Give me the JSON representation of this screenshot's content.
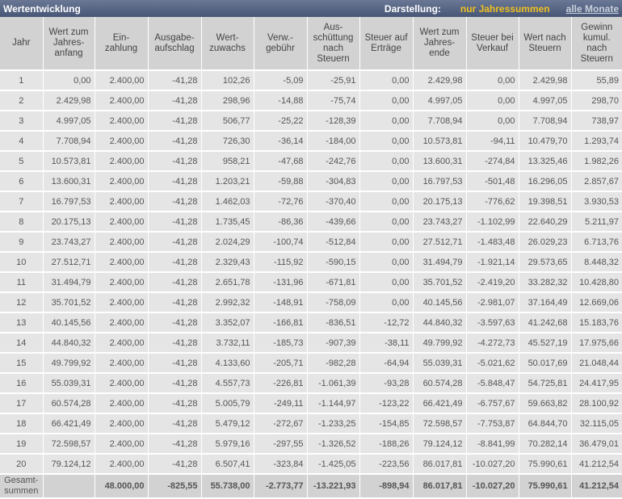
{
  "header": {
    "title": "Wertentwicklung",
    "display_label": "Darstellung:",
    "option_active": "nur Jahressummen",
    "option_link": "alle Monate"
  },
  "colors": {
    "titlebar": "#475676",
    "active_option": "#f0c020",
    "row_bg": "#e5e5e5",
    "header_bg": "#d2d2d2"
  },
  "columns": [
    "Jahr",
    "Wert zum Jahres-anfang",
    "Ein-zahlung",
    "Ausgabe-aufschlag",
    "Wert-zuwachs",
    "Verw.-gebühr",
    "Aus-schüttung nach Steuern",
    "Steuer auf Erträge",
    "Wert zum Jahres-ende",
    "Steuer bei Verkauf",
    "Wert nach Steuern",
    "Gewinn kumul. nach Steuern"
  ],
  "rows": [
    [
      "1",
      "0,00",
      "2.400,00",
      "-41,28",
      "102,26",
      "-5,09",
      "-25,91",
      "0,00",
      "2.429,98",
      "0,00",
      "2.429,98",
      "55,89"
    ],
    [
      "2",
      "2.429,98",
      "2.400,00",
      "-41,28",
      "298,96",
      "-14,88",
      "-75,74",
      "0,00",
      "4.997,05",
      "0,00",
      "4.997,05",
      "298,70"
    ],
    [
      "3",
      "4.997,05",
      "2.400,00",
      "-41,28",
      "506,77",
      "-25,22",
      "-128,39",
      "0,00",
      "7.708,94",
      "0,00",
      "7.708,94",
      "738,97"
    ],
    [
      "4",
      "7.708,94",
      "2.400,00",
      "-41,28",
      "726,30",
      "-36,14",
      "-184,00",
      "0,00",
      "10.573,81",
      "-94,11",
      "10.479,70",
      "1.293,74"
    ],
    [
      "5",
      "10.573,81",
      "2.400,00",
      "-41,28",
      "958,21",
      "-47,68",
      "-242,76",
      "0,00",
      "13.600,31",
      "-274,84",
      "13.325,46",
      "1.982,26"
    ],
    [
      "6",
      "13.600,31",
      "2.400,00",
      "-41,28",
      "1.203,21",
      "-59,88",
      "-304,83",
      "0,00",
      "16.797,53",
      "-501,48",
      "16.296,05",
      "2.857,67"
    ],
    [
      "7",
      "16.797,53",
      "2.400,00",
      "-41,28",
      "1.462,03",
      "-72,76",
      "-370,40",
      "0,00",
      "20.175,13",
      "-776,62",
      "19.398,51",
      "3.930,53"
    ],
    [
      "8",
      "20.175,13",
      "2.400,00",
      "-41,28",
      "1.735,45",
      "-86,36",
      "-439,66",
      "0,00",
      "23.743,27",
      "-1.102,99",
      "22.640,29",
      "5.211,97"
    ],
    [
      "9",
      "23.743,27",
      "2.400,00",
      "-41,28",
      "2.024,29",
      "-100,74",
      "-512,84",
      "0,00",
      "27.512,71",
      "-1.483,48",
      "26.029,23",
      "6.713,76"
    ],
    [
      "10",
      "27.512,71",
      "2.400,00",
      "-41,28",
      "2.329,43",
      "-115,92",
      "-590,15",
      "0,00",
      "31.494,79",
      "-1.921,14",
      "29.573,65",
      "8.448,32"
    ],
    [
      "11",
      "31.494,79",
      "2.400,00",
      "-41,28",
      "2.651,78",
      "-131,96",
      "-671,81",
      "0,00",
      "35.701,52",
      "-2.419,20",
      "33.282,32",
      "10.428,80"
    ],
    [
      "12",
      "35.701,52",
      "2.400,00",
      "-41,28",
      "2.992,32",
      "-148,91",
      "-758,09",
      "0,00",
      "40.145,56",
      "-2.981,07",
      "37.164,49",
      "12.669,06"
    ],
    [
      "13",
      "40.145,56",
      "2.400,00",
      "-41,28",
      "3.352,07",
      "-166,81",
      "-836,51",
      "-12,72",
      "44.840,32",
      "-3.597,63",
      "41.242,68",
      "15.183,76"
    ],
    [
      "14",
      "44.840,32",
      "2.400,00",
      "-41,28",
      "3.732,11",
      "-185,73",
      "-907,39",
      "-38,11",
      "49.799,92",
      "-4.272,73",
      "45.527,19",
      "17.975,66"
    ],
    [
      "15",
      "49.799,92",
      "2.400,00",
      "-41,28",
      "4.133,60",
      "-205,71",
      "-982,28",
      "-64,94",
      "55.039,31",
      "-5.021,62",
      "50.017,69",
      "21.048,44"
    ],
    [
      "16",
      "55.039,31",
      "2.400,00",
      "-41,28",
      "4.557,73",
      "-226,81",
      "-1.061,39",
      "-93,28",
      "60.574,28",
      "-5.848,47",
      "54.725,81",
      "24.417,95"
    ],
    [
      "17",
      "60.574,28",
      "2.400,00",
      "-41,28",
      "5.005,79",
      "-249,11",
      "-1.144,97",
      "-123,22",
      "66.421,49",
      "-6.757,67",
      "59.663,82",
      "28.100,92"
    ],
    [
      "18",
      "66.421,49",
      "2.400,00",
      "-41,28",
      "5.479,12",
      "-272,67",
      "-1.233,25",
      "-154,85",
      "72.598,57",
      "-7.753,87",
      "64.844,70",
      "32.115,05"
    ],
    [
      "19",
      "72.598,57",
      "2.400,00",
      "-41,28",
      "5.979,16",
      "-297,55",
      "-1.326,52",
      "-188,26",
      "79.124,12",
      "-8.841,99",
      "70.282,14",
      "36.479,01"
    ],
    [
      "20",
      "79.124,12",
      "2.400,00",
      "-41,28",
      "6.507,41",
      "-323,84",
      "-1.425,05",
      "-223,56",
      "86.017,81",
      "-10.027,20",
      "75.990,61",
      "41.212,54"
    ]
  ],
  "totals": [
    "Gesamt-summen",
    "",
    "48.000,00",
    "-825,55",
    "55.738,00",
    "-2.773,77",
    "-13.221,93",
    "-898,94",
    "86.017,81",
    "-10.027,20",
    "75.990,61",
    "41.212,54"
  ]
}
